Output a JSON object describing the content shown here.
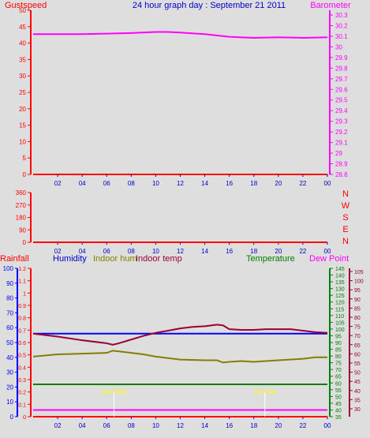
{
  "title": "24 hour graph day : September 21 2011",
  "colors": {
    "red": "#ff0000",
    "magenta": "#ff00ff",
    "navy": "#0000cc",
    "blue": "#0000ff",
    "olive": "#808000",
    "maroon": "#990033",
    "green": "#008000",
    "yellow": "#ffff00",
    "bg": "#dedede"
  },
  "chart_data": [
    {
      "type": "line",
      "left_label": "Gustspeed",
      "right_label": "Barometer",
      "x_ticks": [
        "02",
        "04",
        "06",
        "08",
        "10",
        "12",
        "14",
        "16",
        "18",
        "20",
        "22",
        "00"
      ],
      "left_ticks": [
        "0",
        "5",
        "10",
        "15",
        "20",
        "25",
        "30",
        "35",
        "40",
        "45",
        "50"
      ],
      "right_ticks": [
        "28.8",
        "28.9",
        "29",
        "29.1",
        "29.2",
        "29.3",
        "29.4",
        "29.5",
        "29.6",
        "29.7",
        "29.8",
        "29.9",
        "30",
        "30.1",
        "30.2",
        "30.3"
      ],
      "ylim_left": [
        0,
        50
      ],
      "ylim_right": [
        28.8,
        30.3
      ],
      "series": [
        {
          "name": "Barometer",
          "axis": "right",
          "x": [
            0,
            2,
            4,
            6,
            8,
            10,
            11,
            12,
            14,
            16,
            18,
            20,
            22,
            24
          ],
          "values": [
            30.12,
            30.12,
            30.12,
            30.125,
            30.13,
            30.14,
            30.14,
            30.135,
            30.12,
            30.095,
            30.085,
            30.09,
            30.085,
            30.09
          ]
        }
      ]
    },
    {
      "type": "line",
      "right_letters": [
        "N",
        "W",
        "S",
        "E",
        "N"
      ],
      "x_ticks": [
        "02",
        "04",
        "06",
        "08",
        "10",
        "12",
        "14",
        "16",
        "18",
        "20",
        "22",
        "00"
      ],
      "left_ticks": [
        "0",
        "90",
        "180",
        "270",
        "360"
      ],
      "ylim": [
        0,
        360
      ],
      "series": [
        {
          "name": "Wind direction",
          "x": [
            0,
            24
          ],
          "values": [
            0,
            0
          ]
        }
      ]
    },
    {
      "type": "line",
      "legend": [
        "Rainfall",
        "Humidity",
        "Indoor hum",
        "Indoor temp",
        "Temperature",
        "Dew Point"
      ],
      "x_ticks": [
        "02",
        "04",
        "06",
        "08",
        "10",
        "12",
        "14",
        "16",
        "18",
        "20",
        "22",
        "00"
      ],
      "humidity_ticks": [
        "0",
        "10",
        "20",
        "30",
        "40",
        "50",
        "60",
        "70",
        "80",
        "90",
        "100"
      ],
      "rain_ticks": [
        "0",
        "0.1",
        "0.2",
        "0.3",
        "0.4",
        "0.5",
        "0.6",
        "0.7",
        "0.8",
        "0.9",
        "1",
        "1.1",
        "1.2"
      ],
      "temp_ticks": [
        "35",
        "40",
        "45",
        "50",
        "55",
        "60",
        "65",
        "70",
        "75",
        "80",
        "85",
        "90",
        "95",
        "100",
        "105",
        "110",
        "115",
        "120",
        "125",
        "130",
        "135",
        "140",
        "145"
      ],
      "dew_ticks": [
        "30",
        "35",
        "40",
        "45",
        "50",
        "55",
        "60",
        "65",
        "70",
        "75",
        "80",
        "85",
        "90",
        "95",
        "100",
        "105"
      ],
      "annotations": [
        "Sun Rise",
        "Sun Set"
      ],
      "annotation_x": [
        6.6,
        18.9
      ],
      "ylim_humidity": [
        0,
        100
      ],
      "ylim_rain": [
        0,
        1.2
      ],
      "ylim_temp": [
        35,
        145
      ],
      "series": [
        {
          "name": "Rainfall",
          "axis": "rain",
          "x": [
            0,
            24
          ],
          "values": [
            0,
            0
          ]
        },
        {
          "name": "Humidity",
          "axis": "humidity",
          "x": [
            0,
            24
          ],
          "values": [
            56,
            56
          ]
        },
        {
          "name": "Indoor hum",
          "axis": "humidity",
          "x": [
            0,
            2,
            4,
            6,
            6.5,
            7,
            8,
            9,
            10,
            12,
            14,
            15,
            15.5,
            16,
            17,
            18,
            19,
            20,
            22,
            23,
            24
          ],
          "values": [
            40.5,
            42,
            42.5,
            43,
            44.5,
            44,
            43,
            42,
            40.5,
            38.5,
            38,
            38,
            36.5,
            37,
            37.5,
            37,
            37.5,
            38,
            39,
            40,
            40
          ]
        },
        {
          "name": "Indoor temp",
          "axis": "humidity",
          "x": [
            0,
            2,
            4,
            6,
            6.5,
            7,
            8,
            9,
            10,
            11,
            12,
            13,
            14,
            15,
            15.5,
            16,
            17,
            18,
            19,
            20,
            21,
            22,
            23,
            24
          ],
          "values": [
            56,
            54,
            51.5,
            49.5,
            48.5,
            49.5,
            52,
            54.5,
            56.5,
            58,
            59.5,
            60.5,
            61,
            62,
            61.5,
            59,
            58.5,
            58.5,
            59,
            59,
            59,
            58,
            57,
            56.5
          ]
        },
        {
          "name": "Temperature",
          "axis": "temp",
          "x": [
            0,
            24
          ],
          "values": [
            59,
            59
          ]
        },
        {
          "name": "Dew Point",
          "axis": "temp",
          "x": [
            0,
            24
          ],
          "values": [
            40,
            40
          ]
        }
      ]
    }
  ]
}
